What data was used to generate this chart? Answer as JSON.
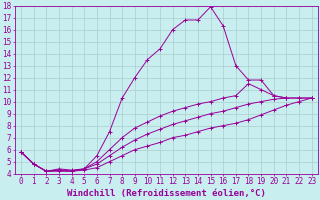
{
  "xlabel": "Windchill (Refroidissement éolien,°C)",
  "xlim": [
    -0.5,
    23.5
  ],
  "ylim": [
    4,
    18
  ],
  "xticks": [
    0,
    1,
    2,
    3,
    4,
    5,
    6,
    7,
    8,
    9,
    10,
    11,
    12,
    13,
    14,
    15,
    16,
    17,
    18,
    19,
    20,
    21,
    22,
    23
  ],
  "yticks": [
    4,
    5,
    6,
    7,
    8,
    9,
    10,
    11,
    12,
    13,
    14,
    15,
    16,
    17,
    18
  ],
  "background_color": "#c8eef0",
  "line_color": "#990099",
  "grid_color": "#aacccc",
  "lines": [
    {
      "x": [
        0,
        1,
        2,
        3,
        4,
        5,
        6,
        7,
        8,
        9,
        10,
        11,
        12,
        13,
        14,
        15,
        16,
        17,
        18,
        19,
        20,
        21
      ],
      "y": [
        5.8,
        4.8,
        4.2,
        4.4,
        4.3,
        4.4,
        5.5,
        7.5,
        10.3,
        12.0,
        13.5,
        14.4,
        16.0,
        16.8,
        16.8,
        17.9,
        16.3,
        13.0,
        11.8,
        11.8,
        10.5,
        10.3
      ]
    },
    {
      "x": [
        0,
        1,
        2,
        3,
        4,
        5,
        6,
        7,
        8,
        9,
        10,
        11,
        12,
        13,
        14,
        15,
        16,
        17,
        18,
        19,
        20,
        21,
        22,
        23
      ],
      "y": [
        5.8,
        4.8,
        4.2,
        4.3,
        4.2,
        4.4,
        5.0,
        6.0,
        7.0,
        7.8,
        8.3,
        8.8,
        9.2,
        9.5,
        9.8,
        10.0,
        10.3,
        10.5,
        11.5,
        11.0,
        10.5,
        10.3,
        10.3,
        10.3
      ]
    },
    {
      "x": [
        0,
        1,
        2,
        3,
        4,
        5,
        6,
        7,
        8,
        9,
        10,
        11,
        12,
        13,
        14,
        15,
        16,
        17,
        18,
        19,
        20,
        21,
        22,
        23
      ],
      "y": [
        5.8,
        4.8,
        4.2,
        4.3,
        4.2,
        4.4,
        4.8,
        5.5,
        6.2,
        6.8,
        7.3,
        7.7,
        8.1,
        8.4,
        8.7,
        9.0,
        9.2,
        9.5,
        9.8,
        10.0,
        10.2,
        10.3,
        10.3,
        10.3
      ]
    },
    {
      "x": [
        0,
        1,
        2,
        3,
        4,
        5,
        6,
        7,
        8,
        9,
        10,
        11,
        12,
        13,
        14,
        15,
        16,
        17,
        18,
        19,
        20,
        21,
        22,
        23
      ],
      "y": [
        5.8,
        4.8,
        4.2,
        4.2,
        4.2,
        4.3,
        4.5,
        5.0,
        5.5,
        6.0,
        6.3,
        6.6,
        7.0,
        7.2,
        7.5,
        7.8,
        8.0,
        8.2,
        8.5,
        8.9,
        9.3,
        9.7,
        10.0,
        10.3
      ]
    }
  ],
  "font_family": "monospace",
  "tick_fontsize": 5.5,
  "label_fontsize": 6.5
}
